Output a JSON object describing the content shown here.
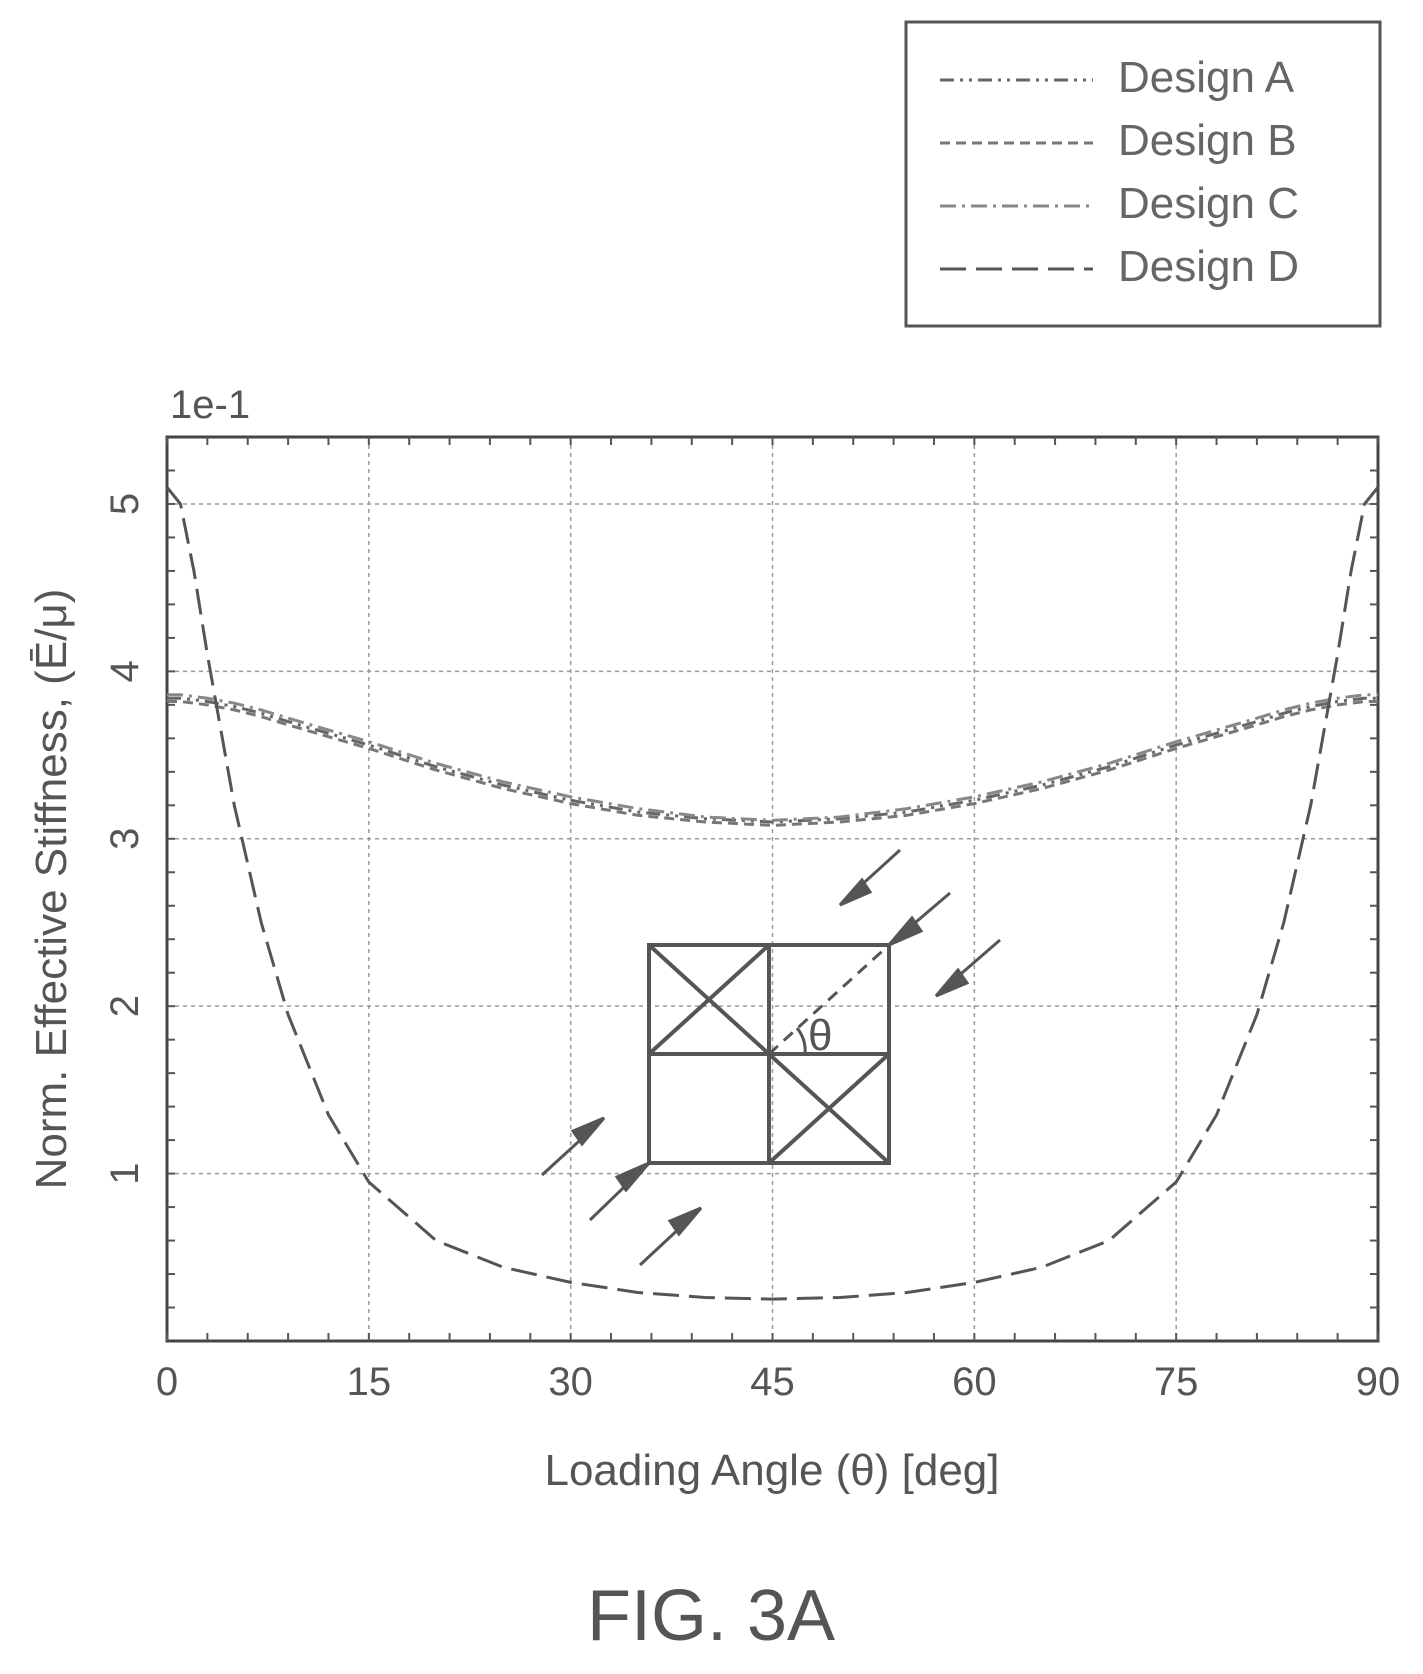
{
  "figure": {
    "caption": "FIG. 3A",
    "scale_label": "1e-1"
  },
  "chart_data": {
    "type": "line",
    "title": "",
    "xlabel": "Loading Angle (θ) [deg]",
    "ylabel": "Norm. Effective Stiffness, (Ē/μ)",
    "xlim": [
      0,
      90
    ],
    "ylim": [
      0,
      5.4
    ],
    "xticks": [
      0,
      15,
      30,
      45,
      60,
      75,
      90
    ],
    "yticks": [
      1,
      2,
      3,
      4,
      5
    ],
    "ytick_labels": [
      "1",
      "2",
      "3",
      "4",
      "5"
    ],
    "xtick_labels": [
      "0",
      "15",
      "30",
      "45",
      "60",
      "75",
      "90"
    ],
    "grid": true,
    "legend_position": "top-right, outside",
    "x": [
      0,
      1,
      2,
      3,
      5,
      7,
      9,
      12,
      15,
      20,
      25,
      30,
      35,
      40,
      45,
      50,
      55,
      60,
      65,
      70,
      75,
      78,
      81,
      83,
      85,
      87,
      88,
      89,
      90
    ],
    "series": [
      {
        "name": "Design A",
        "style": "dash-dot-dot",
        "values": [
          3.84,
          3.84,
          3.83,
          3.82,
          3.79,
          3.75,
          3.7,
          3.63,
          3.56,
          3.43,
          3.32,
          3.23,
          3.16,
          3.12,
          3.1,
          3.12,
          3.16,
          3.23,
          3.32,
          3.43,
          3.56,
          3.63,
          3.7,
          3.75,
          3.79,
          3.82,
          3.83,
          3.84,
          3.84
        ]
      },
      {
        "name": "Design B",
        "style": "dashed",
        "values": [
          3.82,
          3.82,
          3.81,
          3.8,
          3.77,
          3.73,
          3.68,
          3.61,
          3.54,
          3.41,
          3.3,
          3.21,
          3.14,
          3.1,
          3.08,
          3.1,
          3.14,
          3.21,
          3.3,
          3.41,
          3.54,
          3.61,
          3.68,
          3.73,
          3.77,
          3.8,
          3.81,
          3.82,
          3.82
        ]
      },
      {
        "name": "Design C",
        "style": "dash-dot",
        "values": [
          3.86,
          3.86,
          3.85,
          3.84,
          3.81,
          3.77,
          3.72,
          3.65,
          3.58,
          3.45,
          3.34,
          3.25,
          3.18,
          3.13,
          3.11,
          3.13,
          3.18,
          3.25,
          3.34,
          3.45,
          3.58,
          3.65,
          3.72,
          3.77,
          3.81,
          3.84,
          3.85,
          3.86,
          3.86
        ]
      },
      {
        "name": "Design D",
        "style": "long-dash",
        "values": [
          5.1,
          5.0,
          4.6,
          4.1,
          3.2,
          2.5,
          1.95,
          1.35,
          0.95,
          0.6,
          0.44,
          0.35,
          0.29,
          0.26,
          0.25,
          0.26,
          0.29,
          0.35,
          0.44,
          0.6,
          0.95,
          1.35,
          1.95,
          2.5,
          3.2,
          4.1,
          4.6,
          5.0,
          5.1
        ]
      }
    ]
  },
  "inset": {
    "angle_label": "θ"
  }
}
